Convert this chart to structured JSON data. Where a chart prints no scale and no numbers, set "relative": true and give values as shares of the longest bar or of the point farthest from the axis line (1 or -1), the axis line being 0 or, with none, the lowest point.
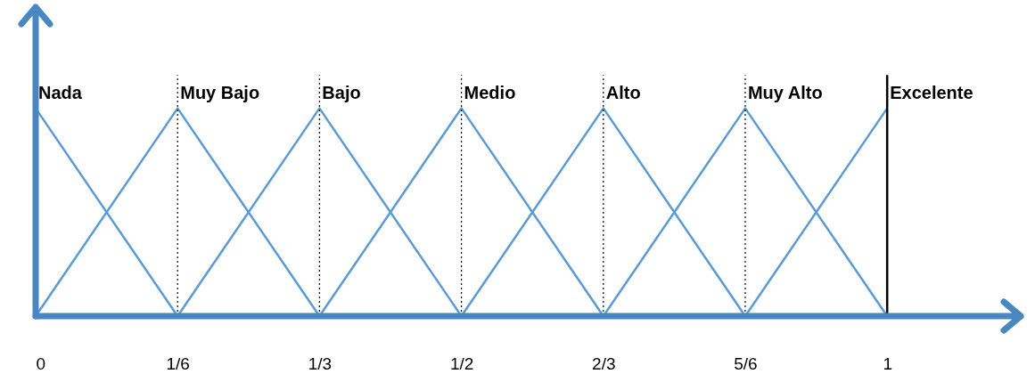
{
  "chart_data": {
    "type": "line",
    "relative": true,
    "xlim": [
      0,
      1.16
    ],
    "xticks": [
      {
        "value": 0,
        "label": "0"
      },
      {
        "value": 0.1667,
        "label": "1/6"
      },
      {
        "value": 0.3333,
        "label": "1/3"
      },
      {
        "value": 0.5,
        "label": "1/2"
      },
      {
        "value": 0.6667,
        "label": "2/3"
      },
      {
        "value": 0.8333,
        "label": "5/6"
      },
      {
        "value": 1,
        "label": "1"
      }
    ],
    "series": [
      {
        "name": "Nada",
        "color": "#5b9bd5",
        "x": [
          0,
          0.1667
        ],
        "values": [
          1,
          0
        ]
      },
      {
        "name": "Muy Bajo",
        "color": "#5b9bd5",
        "x": [
          0,
          0.1667,
          0.3333
        ],
        "values": [
          0,
          1,
          0
        ]
      },
      {
        "name": "Bajo",
        "color": "#5b9bd5",
        "x": [
          0.1667,
          0.3333,
          0.5
        ],
        "values": [
          0,
          1,
          0
        ]
      },
      {
        "name": "Medio",
        "color": "#5b9bd5",
        "x": [
          0.3333,
          0.5,
          0.6667
        ],
        "values": [
          0,
          1,
          0
        ]
      },
      {
        "name": "Alto",
        "color": "#5b9bd5",
        "x": [
          0.5,
          0.6667,
          0.8333
        ],
        "values": [
          0,
          1,
          0
        ]
      },
      {
        "name": "Muy Alto",
        "color": "#5b9bd5",
        "x": [
          0.6667,
          0.8333,
          1
        ],
        "values": [
          0,
          1,
          0
        ]
      },
      {
        "name": "Excelente",
        "color": "#5b9bd5",
        "x": [
          0.8333,
          1
        ],
        "values": [
          0,
          1
        ]
      }
    ],
    "ref_lines": [
      {
        "axis": "x",
        "value": 0.1667,
        "color": "#000000",
        "line_style": "dotted"
      },
      {
        "axis": "x",
        "value": 0.3333,
        "color": "#000000",
        "line_style": "dotted"
      },
      {
        "axis": "x",
        "value": 0.5,
        "color": "#000000",
        "line_style": "dotted"
      },
      {
        "axis": "x",
        "value": 0.6667,
        "color": "#000000",
        "line_style": "dotted"
      },
      {
        "axis": "x",
        "value": 0.8333,
        "color": "#000000",
        "line_style": "dotted"
      },
      {
        "axis": "x",
        "value": 1,
        "color": "#000000",
        "line_style": "solid"
      }
    ],
    "grid": false,
    "marker": "none",
    "line_style": "solid"
  }
}
